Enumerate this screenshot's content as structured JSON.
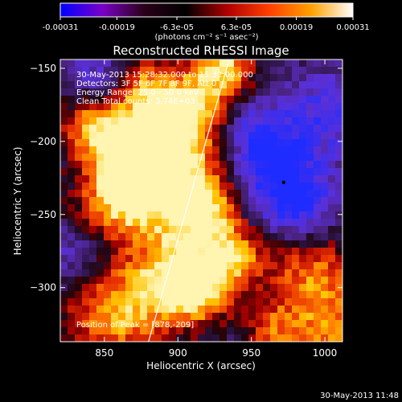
{
  "colorbar": {
    "tick_labels": [
      "-0.00031",
      "-0.00019",
      "-6.3e-05",
      "6.3e-05",
      "0.00019",
      "0.00031"
    ],
    "tick_values": [
      -0.00031,
      -0.00019,
      -6.3e-05,
      6.3e-05,
      0.00019,
      0.00031
    ],
    "range": [
      -0.00031,
      0.00031
    ],
    "unit_label": "(photons cm⁻² s⁻¹ asec⁻²)",
    "colors": [
      "#0000ff",
      "#7a00c8",
      "#2a0018",
      "#000000",
      "#b00000",
      "#ff4000",
      "#ffa000",
      "#ffffff"
    ]
  },
  "chart_data": {
    "type": "heatmap",
    "title": "Reconstructed RHESSI Image",
    "xlabel": "Heliocentric X (arcsec)",
    "ylabel": "Heliocentric Y (arcsec)",
    "xlim": [
      820,
      1012
    ],
    "ylim": [
      -337,
      -144
    ],
    "x_ticks": [
      850,
      900,
      950,
      1000
    ],
    "y_ticks": [
      -150,
      -200,
      -250,
      -300
    ],
    "x_tick_labels": [
      "850",
      "900",
      "950",
      "1000"
    ],
    "y_tick_labels": [
      "−150",
      "−200",
      "−250",
      "−300"
    ],
    "annotations": [
      "30-May-2013 15:28:32.000 to 15:32:00.000",
      "Detectors: 3F 5F 6F 7F 8F 9F, Att 0",
      "Energy Range: 25.0 - 50.0 keV",
      "Clean     Total counts: 3.74E+03"
    ],
    "peak_label": "Position of Peak = [878,-209]",
    "peak": [
      878,
      -209
    ],
    "limb": [
      [
        880,
        -337
      ],
      [
        935,
        -144
      ]
    ],
    "marker": [
      972,
      -228
    ],
    "hotspots": [
      {
        "x": 870,
        "y": -200,
        "level": 0.95,
        "r": 22
      },
      {
        "x": 895,
        "y": -225,
        "level": 0.85,
        "r": 25
      },
      {
        "x": 860,
        "y": -240,
        "level": 0.7,
        "r": 20
      },
      {
        "x": 905,
        "y": -180,
        "level": 0.8,
        "r": 18
      },
      {
        "x": 930,
        "y": -150,
        "level": 0.9,
        "r": 15
      },
      {
        "x": 920,
        "y": -250,
        "level": 0.75,
        "r": 18
      },
      {
        "x": 895,
        "y": -295,
        "level": 0.85,
        "r": 22
      },
      {
        "x": 915,
        "y": -300,
        "level": 0.65,
        "r": 16
      },
      {
        "x": 855,
        "y": -320,
        "level": 0.7,
        "r": 22
      },
      {
        "x": 940,
        "y": -280,
        "level": 0.55,
        "r": 14
      },
      {
        "x": 990,
        "y": -290,
        "level": 0.6,
        "r": 22
      },
      {
        "x": 1005,
        "y": -330,
        "level": 0.55,
        "r": 18
      },
      {
        "x": 965,
        "y": -330,
        "level": 0.45,
        "r": 14
      },
      {
        "x": 840,
        "y": -190,
        "level": 0.45,
        "r": 14
      },
      {
        "x": 880,
        "y": -160,
        "level": 0.4,
        "r": 14
      }
    ],
    "coldspots": [
      {
        "x": 970,
        "y": -225,
        "level": -0.85,
        "r": 22
      },
      {
        "x": 955,
        "y": -195,
        "level": -0.55,
        "r": 16
      },
      {
        "x": 1000,
        "y": -180,
        "level": -0.5,
        "r": 18
      },
      {
        "x": 985,
        "y": -250,
        "level": -0.45,
        "r": 15
      },
      {
        "x": 845,
        "y": -155,
        "level": -0.4,
        "r": 14
      },
      {
        "x": 830,
        "y": -275,
        "level": -0.35,
        "r": 12
      }
    ]
  },
  "timestamp": "30-May-2013 11:48"
}
